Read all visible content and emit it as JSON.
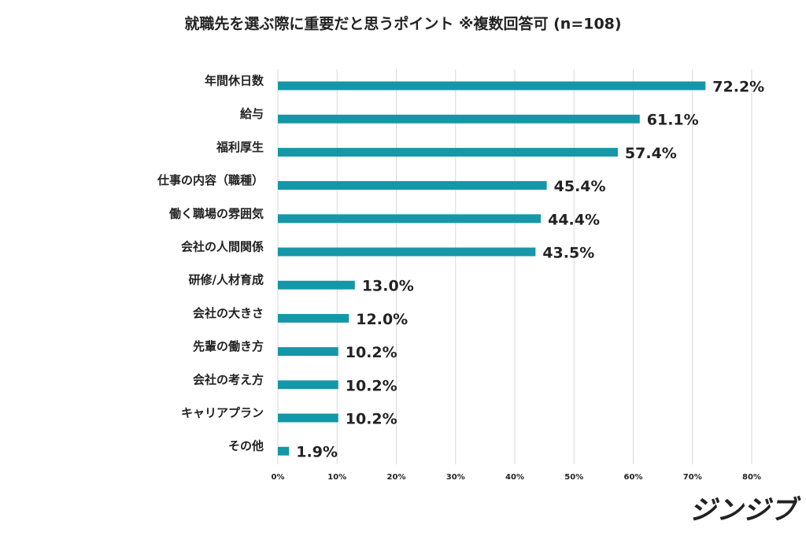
{
  "chart_data": {
    "type": "hbar",
    "title": "就職先を選ぶ際に重要だと思うポイント ※複数回答可 (n=108)",
    "categories": [
      "年間休日数",
      "給与",
      "福利厚生",
      "仕事の内容（職種）",
      "働く職場の雰囲気",
      "会社の人間関係",
      "研修/人材育成",
      "会社の大きさ",
      "先輩の働き方",
      "会社の考え方",
      "キャリアプラン",
      "その他"
    ],
    "values": [
      72.2,
      61.1,
      57.4,
      45.4,
      44.4,
      43.5,
      13.0,
      12.0,
      10.2,
      10.2,
      10.2,
      1.9
    ],
    "value_labels": [
      "72.2%",
      "61.1%",
      "57.4%",
      "45.4%",
      "44.4%",
      "43.5%",
      "13.0%",
      "12.0%",
      "10.2%",
      "10.2%",
      "10.2%",
      "1.9%"
    ],
    "color": "#1497a8",
    "xlim": [
      0,
      80
    ],
    "xticks": [
      {
        "value": 0,
        "label": "0%"
      },
      {
        "value": 10,
        "label": "10%"
      },
      {
        "value": 20,
        "label": "20%"
      },
      {
        "value": 30,
        "label": "30%"
      },
      {
        "value": 40,
        "label": "40%"
      },
      {
        "value": 50,
        "label": "50%"
      },
      {
        "value": 60,
        "label": "60%"
      },
      {
        "value": 70,
        "label": "70%"
      },
      {
        "value": 80,
        "label": "80%"
      }
    ],
    "grid": true
  },
  "brand": "ジンジブ"
}
